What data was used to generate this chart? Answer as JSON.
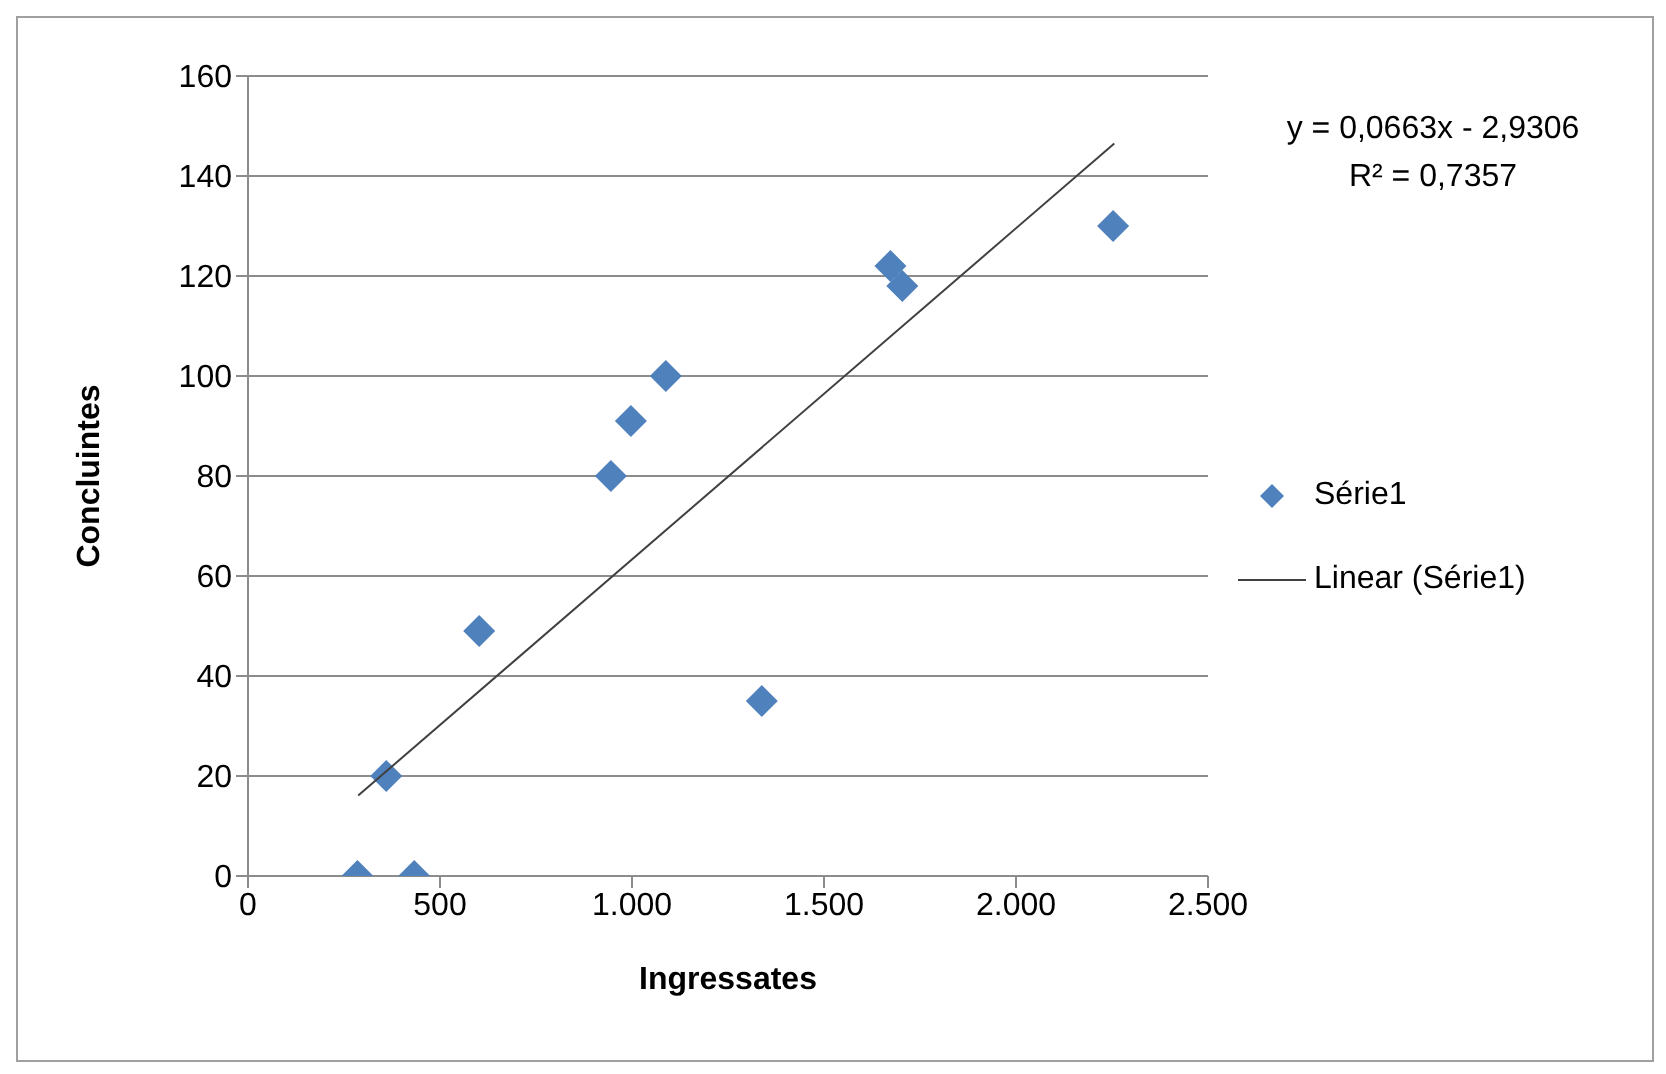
{
  "chart_data": {
    "type": "scatter",
    "xlabel": "Ingressates",
    "ylabel": "Concluintes",
    "series": [
      {
        "name": "Série1",
        "marker": "diamond",
        "color": "#4f81bd",
        "x": [
          285,
          433,
          360,
          602,
          945,
          997,
          1088,
          1338,
          1673,
          1704,
          2253
        ],
        "values": [
          0,
          0,
          20,
          49,
          80,
          91,
          100,
          35,
          122,
          118,
          130
        ]
      },
      {
        "name": "Linear (Série1)",
        "type": "line",
        "marker": "none",
        "color": "#404040",
        "x": [
          287,
          2256
        ],
        "values": [
          16.1,
          146.5
        ]
      }
    ],
    "xlim": [
      0,
      2500
    ],
    "xticks": [
      0,
      500,
      {
        "value": 1000,
        "label": "1.000"
      },
      {
        "value": 1500,
        "label": "1.500"
      },
      {
        "value": 2000,
        "label": "2.000"
      },
      {
        "value": 2500,
        "label": "2.500"
      }
    ],
    "ylim": [
      0,
      160
    ],
    "yticks": [
      0,
      20,
      40,
      60,
      80,
      100,
      120,
      140,
      160
    ],
    "grid": "y",
    "legend": "right",
    "annotations": [
      "y = 0,0663x - 2,9306",
      "R² = 0,7357"
    ]
  }
}
